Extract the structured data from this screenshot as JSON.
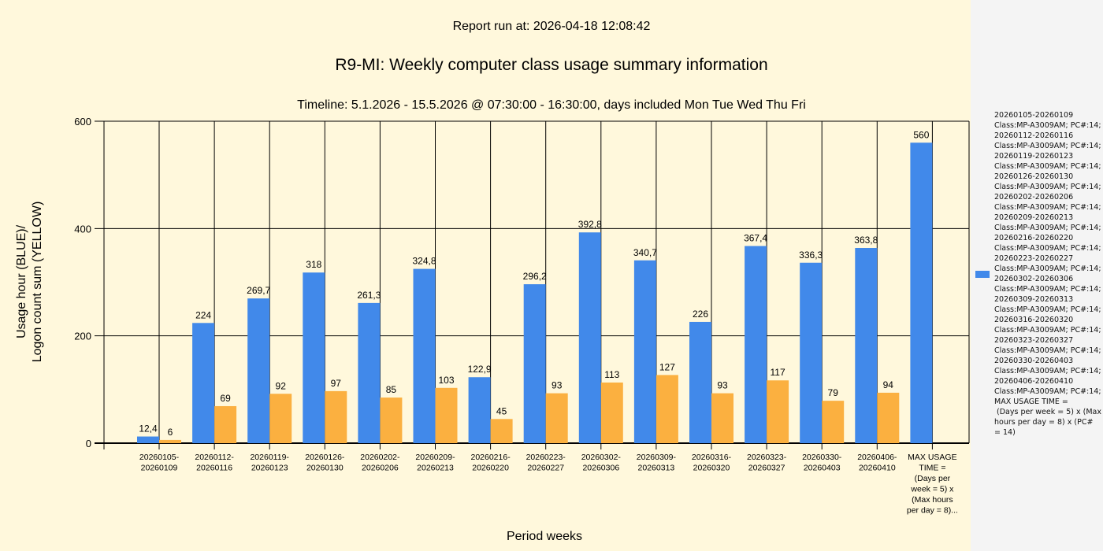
{
  "chart_data": {
    "type": "bar",
    "report_run": "Report run at: 2026-04-18 12:08:42",
    "title": "R9-MI: Weekly computer class usage summary information",
    "subtitle": "Timeline:  5.1.2026  - 15.5.2026  @  07:30:00 -  16:30:00, days included Mon Tue Wed Thu Fri",
    "xlabel": "Period weeks",
    "ylabel": [
      "Usage hour (BLUE)/",
      "Logon count sum (YELLOW)"
    ],
    "ylim": [
      0,
      600
    ],
    "yticks": [
      0,
      200,
      400,
      600
    ],
    "grid": true,
    "legend_placement": "right",
    "categories": [
      [
        "20260105-",
        "20260109"
      ],
      [
        "20260112-",
        "20260116"
      ],
      [
        "20260119-",
        "20260123"
      ],
      [
        "20260126-",
        "20260130"
      ],
      [
        "20260202-",
        "20260206"
      ],
      [
        "20260209-",
        "20260213"
      ],
      [
        "20260216-",
        "20260220"
      ],
      [
        "20260223-",
        "20260227"
      ],
      [
        "20260302-",
        "20260306"
      ],
      [
        "20260309-",
        "20260313"
      ],
      [
        "20260316-",
        "20260320"
      ],
      [
        "20260323-",
        "20260327"
      ],
      [
        "20260330-",
        "20260403"
      ],
      [
        "20260406-",
        "20260410"
      ],
      [
        "MAX USAGE",
        "TIME =",
        "(Days per",
        "week = 5) x",
        "(Max hours",
        "per day = 8)..."
      ]
    ],
    "series": [
      {
        "name": "Usage hour",
        "color": "#4189ea",
        "values": [
          12.4,
          224,
          269.7,
          318,
          261.3,
          324.8,
          122.9,
          296.2,
          392.8,
          340.7,
          226,
          367.4,
          336.3,
          363.8,
          560
        ],
        "labels": [
          "12,4",
          "224",
          "269,7",
          "318",
          "261,3",
          "324,8",
          "122,9",
          "296,2",
          "392,8",
          "340,7",
          "226",
          "367,4",
          "336,3",
          "363,8",
          "560"
        ]
      },
      {
        "name": "Logon count sum",
        "color": "#fbb040",
        "values": [
          6,
          69,
          92,
          97,
          85,
          103,
          45,
          93,
          113,
          127,
          93,
          117,
          79,
          94,
          null
        ],
        "labels": [
          "6",
          "69",
          "92",
          "97",
          "85",
          "103",
          "45",
          "93",
          "113",
          "127",
          "93",
          "117",
          "79",
          "94",
          null
        ]
      }
    ],
    "legend": [
      "20260105-20260109",
      "Class:MP-A3009AM; PC#:14;",
      "20260112-20260116",
      "Class:MP-A3009AM; PC#:14;",
      "20260119-20260123",
      "Class:MP-A3009AM; PC#:14;",
      "20260126-20260130",
      "Class:MP-A3009AM; PC#:14;",
      "20260202-20260206",
      "Class:MP-A3009AM; PC#:14;",
      "20260209-20260213",
      "Class:MP-A3009AM; PC#:14;",
      "20260216-20260220",
      "Class:MP-A3009AM; PC#:14;",
      "20260223-20260227",
      "Class:MP-A3009AM; PC#:14;",
      "20260302-20260306",
      "Class:MP-A3009AM; PC#:14;",
      "20260309-20260313",
      "Class:MP-A3009AM; PC#:14;",
      "20260316-20260320",
      "Class:MP-A3009AM; PC#:14;",
      "20260323-20260327",
      "Class:MP-A3009AM; PC#:14;",
      "20260330-20260403",
      "Class:MP-A3009AM; PC#:14;",
      "20260406-20260410",
      "Class:MP-A3009AM; PC#:14;",
      "MAX USAGE TIME =",
      " (Days per week = 5) x (Max",
      "hours per day = 8) x (PC#",
      "= 14)"
    ]
  }
}
